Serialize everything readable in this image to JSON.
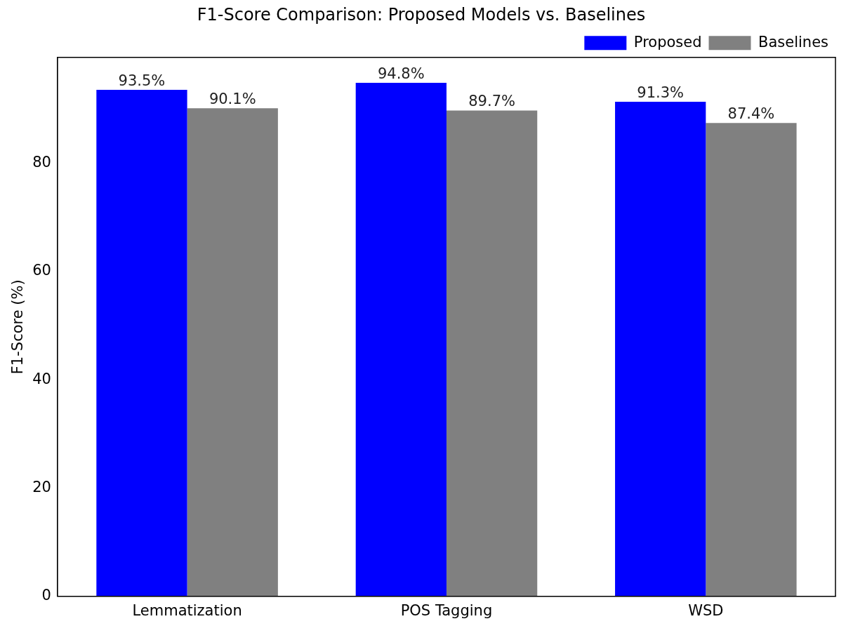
{
  "chart_data": {
    "type": "bar",
    "title": "F1-Score Comparison: Proposed Models vs. Baselines",
    "ylabel": "F1-Score (%)",
    "categories": [
      "Lemmatization",
      "POS Tagging",
      "WSD"
    ],
    "series": [
      {
        "name": "Proposed",
        "color": "#0000ff",
        "values": [
          93.5,
          94.8,
          91.3
        ],
        "value_labels": [
          "93.5%",
          "94.8%",
          "91.3%"
        ]
      },
      {
        "name": "Baselines",
        "color": "#808080",
        "values": [
          90.1,
          89.7,
          87.4
        ],
        "value_labels": [
          "90.1%",
          "89.7%",
          "87.4%"
        ]
      }
    ],
    "ylim": [
      0,
      99.5
    ],
    "yticks": [
      0,
      20,
      40,
      60,
      80
    ],
    "grid": false,
    "legend": "top right"
  }
}
